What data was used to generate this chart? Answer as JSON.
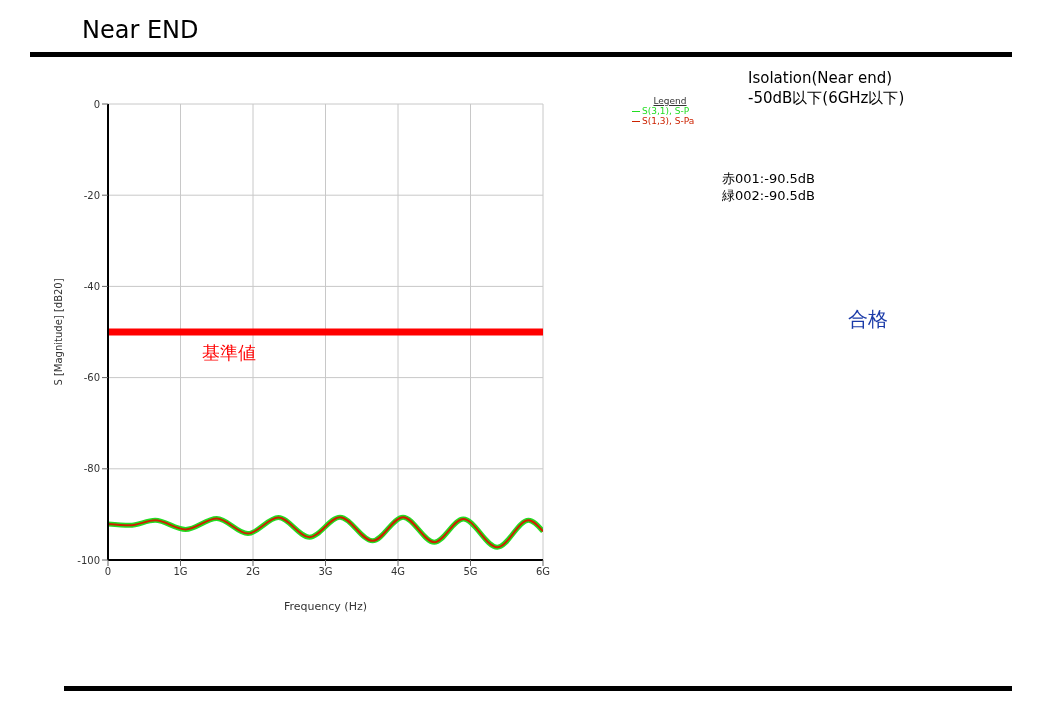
{
  "chart_data": {
    "type": "line",
    "title": "Near END",
    "xlabel": "Frequency (Hz)",
    "ylabel": "S [Magnitude] [dB20]",
    "legend_title": "Legend",
    "x": [
      0,
      0.3,
      0.65,
      1.07,
      1.5,
      1.93,
      2.35,
      2.78,
      3.2,
      3.65,
      4.07,
      4.5,
      4.9,
      5.37,
      5.8,
      6
    ],
    "series": [
      {
        "name": "S(3,1), S-P",
        "color": "#22dd22",
        "values": [
          -92.1,
          -92.4,
          -91.3,
          -93.3,
          -90.9,
          -94.2,
          -90.7,
          -95.0,
          -90.6,
          -95.8,
          -90.6,
          -96.1,
          -91.0,
          -97.2,
          -91.3,
          -93.7
        ]
      },
      {
        "name": "S(1,3), S-Pa",
        "color": "#cc2200",
        "values": [
          -92.1,
          -92.4,
          -91.3,
          -93.3,
          -90.9,
          -94.2,
          -90.7,
          -95.0,
          -90.6,
          -95.8,
          -90.6,
          -96.1,
          -91.0,
          -97.2,
          -91.3,
          -93.7
        ]
      }
    ],
    "xlim": [
      0,
      6
    ],
    "xticks": [
      0,
      {
        "value": 1,
        "label": "1G"
      },
      {
        "value": 2,
        "label": "2G"
      },
      {
        "value": 3,
        "label": "3G"
      },
      {
        "value": 4,
        "label": "4G"
      },
      {
        "value": 5,
        "label": "5G"
      },
      {
        "value": 6,
        "label": "6G"
      }
    ],
    "ylim": [
      -100,
      0
    ],
    "yticks": [
      -100,
      -80,
      -60,
      -40,
      -20,
      0
    ],
    "grid": true,
    "legend": "top right",
    "marker": "none",
    "line_style": "solid",
    "ref_lines": [
      {
        "axis": "y",
        "value": -50,
        "label": "基準値",
        "color": "#ff0000"
      }
    ],
    "annotations": [
      "Isolation(Near end)",
      "-50dB以下(6GHz以下)",
      "赤001:-90.5dB",
      "緑002:-90.5dB",
      "合格"
    ]
  }
}
